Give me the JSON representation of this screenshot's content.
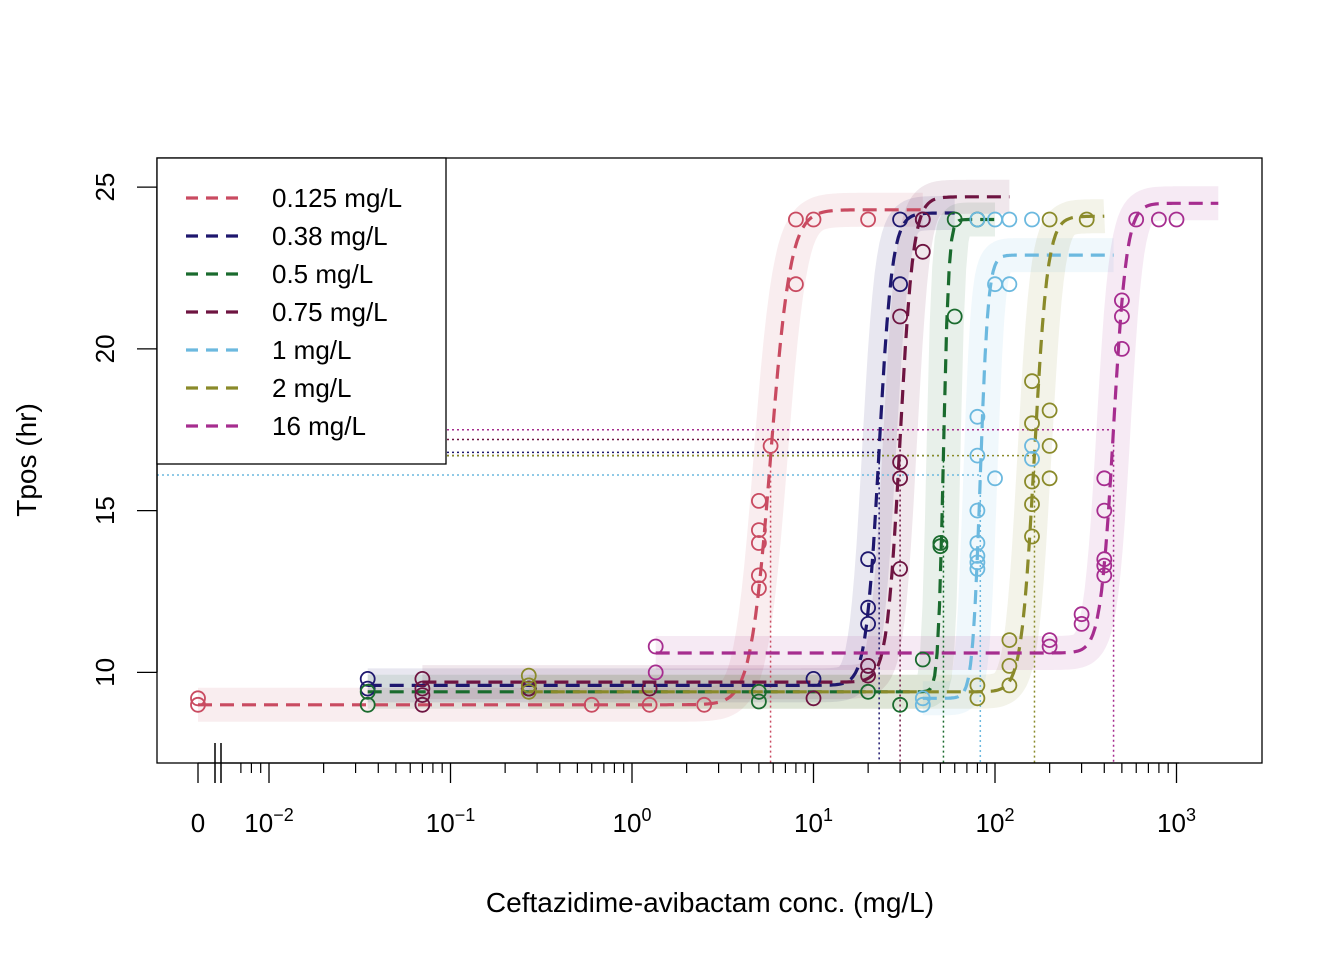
{
  "chart_data": {
    "type": "scatter",
    "xlabel": "Ceftazidime-avibactam conc. (mg/L)",
    "ylabel": "Tpos (hr)",
    "x_scale": "log10 with zero break",
    "x_zero_label": "0",
    "x_ticks": [
      {
        "value": 0.01,
        "base": "10",
        "exp": "−2"
      },
      {
        "value": 0.1,
        "base": "10",
        "exp": "−1"
      },
      {
        "value": 1,
        "base": "10",
        "exp": "0"
      },
      {
        "value": 10,
        "base": "10",
        "exp": "1"
      },
      {
        "value": 100,
        "base": "10",
        "exp": "2"
      },
      {
        "value": 1000,
        "base": "10",
        "exp": "3"
      }
    ],
    "xlim": [
      0.0065,
      2400
    ],
    "y_ticks": [
      10,
      15,
      20,
      25
    ],
    "ylim": [
      7.2,
      25.9
    ],
    "legend_position": "top-left",
    "grid": false,
    "series": [
      {
        "name": "0.125 mg/L",
        "color": "#C94B61",
        "low": 9.0,
        "high": 24.3,
        "ec50": 5.8,
        "hill": 8,
        "xmax": 40,
        "tpos_threshold": 16.7,
        "points": [
          [
            0,
            9.0
          ],
          [
            0,
            9.2
          ],
          [
            0.6,
            9.0
          ],
          [
            1.25,
            9.0
          ],
          [
            2.5,
            9.0
          ],
          [
            5,
            12.6
          ],
          [
            5,
            13.0
          ],
          [
            5,
            14.0
          ],
          [
            5,
            14.4
          ],
          [
            5,
            15.3
          ],
          [
            5.8,
            17.0
          ],
          [
            8,
            22.0
          ],
          [
            8,
            24.0
          ],
          [
            10,
            24.0
          ],
          [
            20,
            24.0
          ]
        ]
      },
      {
        "name": "0.38 mg/L",
        "color": "#1E176E",
        "low": 9.6,
        "high": 24.2,
        "ec50": 23,
        "hill": 12,
        "xmax": 60,
        "tpos_threshold": 16.8,
        "points": [
          [
            0.035,
            9.5
          ],
          [
            0.035,
            9.8
          ],
          [
            0.27,
            9.5
          ],
          [
            10,
            9.8
          ],
          [
            20,
            10.2
          ],
          [
            20,
            11.5
          ],
          [
            20,
            12.0
          ],
          [
            20,
            13.5
          ],
          [
            30,
            22.0
          ],
          [
            30,
            24.0
          ],
          [
            40,
            24.0
          ]
        ]
      },
      {
        "name": "0.5 mg/L",
        "color": "#1A6B2E",
        "low": 9.4,
        "high": 24.0,
        "ec50": 52,
        "hill": 30,
        "xmax": 100,
        "tpos_threshold": 16.7,
        "points": [
          [
            0.035,
            9.0
          ],
          [
            0.035,
            9.4
          ],
          [
            0.27,
            9.5
          ],
          [
            5,
            9.1
          ],
          [
            5,
            9.4
          ],
          [
            20,
            9.4
          ],
          [
            30,
            9.0
          ],
          [
            40,
            10.4
          ],
          [
            50,
            13.9
          ],
          [
            50,
            14.0
          ],
          [
            60,
            21.0
          ],
          [
            60,
            24.0
          ],
          [
            80,
            24.0
          ]
        ]
      },
      {
        "name": "0.75 mg/L",
        "color": "#6E1441",
        "low": 9.7,
        "high": 24.7,
        "ec50": 30,
        "hill": 12,
        "xmax": 120,
        "tpos_threshold": 17.2,
        "points": [
          [
            0.07,
            9.0
          ],
          [
            0.07,
            9.3
          ],
          [
            0.07,
            9.5
          ],
          [
            0.07,
            9.8
          ],
          [
            0.27,
            9.5
          ],
          [
            1.25,
            9.5
          ],
          [
            10,
            9.2
          ],
          [
            20,
            9.9
          ],
          [
            20,
            10.2
          ],
          [
            30,
            13.2
          ],
          [
            30,
            16.0
          ],
          [
            30,
            16.5
          ],
          [
            30,
            21.0
          ],
          [
            40,
            23.0
          ],
          [
            40,
            24.0
          ]
        ]
      },
      {
        "name": "1 mg/L",
        "color": "#6CB9DF",
        "low": 9.2,
        "high": 22.9,
        "ec50": 83,
        "hill": 20,
        "xmax": 450,
        "tpos_threshold": 16.1,
        "points": [
          [
            40,
            9.0
          ],
          [
            40,
            9.2
          ],
          [
            80,
            13.2
          ],
          [
            80,
            13.4
          ],
          [
            80,
            13.6
          ],
          [
            80,
            14.0
          ],
          [
            80,
            15.0
          ],
          [
            80,
            16.7
          ],
          [
            80,
            17.9
          ],
          [
            80,
            24.0
          ],
          [
            100,
            16.0
          ],
          [
            100,
            22.0
          ],
          [
            100,
            24.0
          ],
          [
            120,
            22.0
          ],
          [
            120,
            24.0
          ],
          [
            160,
            16.6
          ],
          [
            160,
            17.0
          ],
          [
            160,
            24.0
          ]
        ]
      },
      {
        "name": "2 mg/L",
        "color": "#8A8A2A",
        "low": 9.4,
        "high": 24.1,
        "ec50": 165,
        "hill": 12,
        "xmax": 400,
        "tpos_threshold": 16.7,
        "points": [
          [
            0.27,
            9.4
          ],
          [
            0.27,
            9.6
          ],
          [
            0.27,
            9.9
          ],
          [
            80,
            9.2
          ],
          [
            80,
            9.6
          ],
          [
            120,
            9.6
          ],
          [
            120,
            10.2
          ],
          [
            120,
            11.0
          ],
          [
            160,
            14.2
          ],
          [
            160,
            15.2
          ],
          [
            160,
            15.9
          ],
          [
            160,
            17.7
          ],
          [
            160,
            19.0
          ],
          [
            200,
            16.0
          ],
          [
            200,
            17.0
          ],
          [
            200,
            18.1
          ],
          [
            200,
            24.0
          ],
          [
            320,
            24.0
          ]
        ]
      },
      {
        "name": "16 mg/L",
        "color": "#A62D8F",
        "low": 10.6,
        "high": 24.5,
        "ec50": 450,
        "hill": 12,
        "xmax": 1700,
        "tpos_threshold": 17.5,
        "points": [
          [
            1.35,
            10.0
          ],
          [
            1.35,
            10.8
          ],
          [
            200,
            10.8
          ],
          [
            200,
            11.0
          ],
          [
            300,
            11.5
          ],
          [
            300,
            11.8
          ],
          [
            400,
            13.0
          ],
          [
            400,
            13.3
          ],
          [
            400,
            13.5
          ],
          [
            400,
            15.0
          ],
          [
            400,
            16.0
          ],
          [
            500,
            20.0
          ],
          [
            500,
            21.0
          ],
          [
            500,
            21.5
          ],
          [
            600,
            24.0
          ],
          [
            800,
            24.0
          ],
          [
            1000,
            24.0
          ]
        ]
      }
    ]
  }
}
